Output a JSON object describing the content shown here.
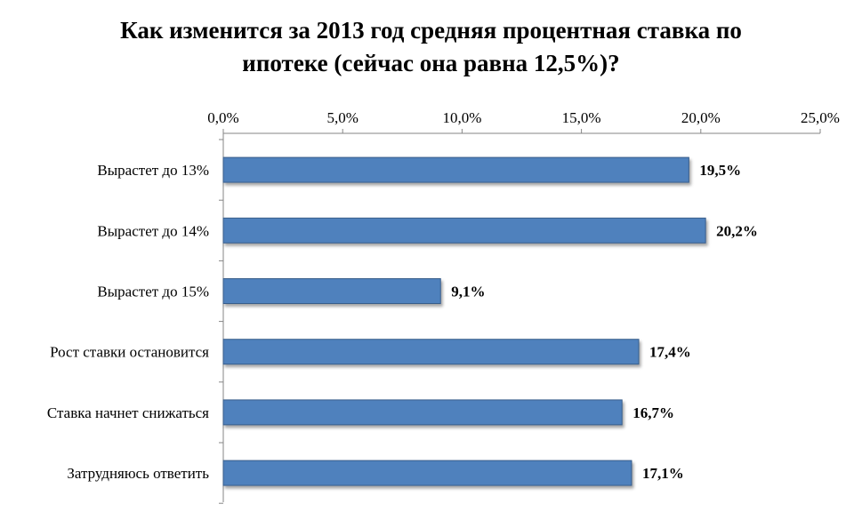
{
  "chart_data": {
    "type": "bar",
    "orientation": "horizontal",
    "title": "Как изменится за 2013 год средняя процентная ставка по ипотеке (сейчас она равна 12,5%)?",
    "title_lines": [
      "Как изменится за 2013 год средняя процентная ставка по",
      "ипотеке (сейчас она равна 12,5%)?"
    ],
    "categories": [
      "Вырастет до 13%",
      "Вырастет до 14%",
      "Вырастет до 15%",
      "Рост ставки остановится",
      "Ставка начнет снижаться",
      "Затрудняюсь ответить"
    ],
    "values": [
      19.5,
      20.2,
      9.1,
      17.4,
      16.7,
      17.1
    ],
    "data_labels": [
      "19,5%",
      "20,2%",
      "9,1%",
      "17,4%",
      "16,7%",
      "17,1%"
    ],
    "x_ticks": [
      0,
      5,
      10,
      15,
      20,
      25
    ],
    "x_tick_labels": [
      "0,0%",
      "5,0%",
      "10,0%",
      "15,0%",
      "20,0%",
      "25,0%"
    ],
    "xlim": [
      0,
      25
    ],
    "x_axis_position": "top",
    "xlabel": "",
    "ylabel": "",
    "grid": false,
    "legend": "none",
    "bar_color": "#4F81BD",
    "bar_border_color": "#385D8A"
  }
}
